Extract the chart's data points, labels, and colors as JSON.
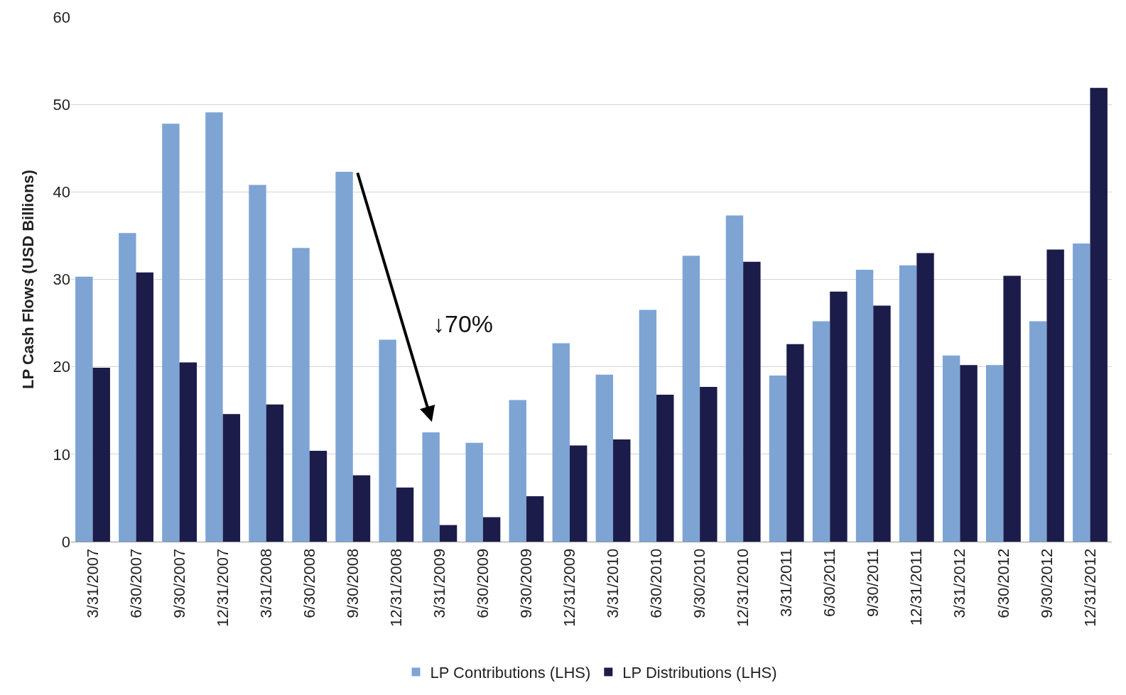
{
  "chart_data": {
    "type": "bar",
    "ylabel": "LP Cash Flows (USD Billions)",
    "categories": [
      "3/31/2007",
      "6/30/2007",
      "9/30/2007",
      "12/31/2007",
      "3/31/2008",
      "6/30/2008",
      "9/30/2008",
      "12/31/2008",
      "3/31/2009",
      "6/30/2009",
      "9/30/2009",
      "12/31/2009",
      "3/31/2010",
      "6/30/2010",
      "9/30/2010",
      "12/31/2010",
      "3/31/2011",
      "6/30/2011",
      "9/30/2011",
      "12/31/2011",
      "3/31/2012",
      "6/30/2012",
      "9/30/2012",
      "12/31/2012"
    ],
    "series": [
      {
        "name": "LP Contributions (LHS)",
        "color": "#7ea4d4",
        "values": [
          30.3,
          35.3,
          47.8,
          49.1,
          40.8,
          33.6,
          42.3,
          23.1,
          12.5,
          11.3,
          16.2,
          22.7,
          19.1,
          26.5,
          32.7,
          37.3,
          19.0,
          25.2,
          31.1,
          31.6,
          21.3,
          20.2,
          25.2,
          34.1
        ]
      },
      {
        "name": "LP Distributions (LHS)",
        "color": "#1c1c4a",
        "values": [
          19.9,
          30.8,
          20.5,
          14.6,
          15.7,
          10.4,
          7.6,
          6.2,
          1.9,
          2.8,
          5.2,
          11.0,
          11.7,
          16.8,
          17.7,
          32.0,
          22.6,
          28.6,
          27.0,
          33.0,
          20.2,
          30.4,
          33.4,
          51.9
        ]
      }
    ],
    "ylim": [
      0,
      60
    ],
    "yticks": [
      0,
      10,
      20,
      30,
      40,
      50,
      60
    ],
    "grid": "y",
    "legend": "bottom",
    "annotations": [
      "↓70%"
    ]
  }
}
